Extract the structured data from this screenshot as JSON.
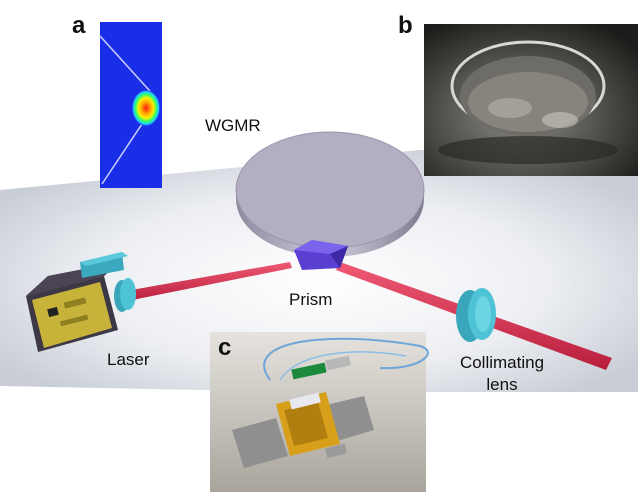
{
  "panels": {
    "a": "a",
    "b": "b",
    "c": "c"
  },
  "labels": {
    "wgmr": "WGMR",
    "prism": "Prism",
    "laser": "Laser",
    "collimating_line1": "Collimating",
    "collimating_line2": "lens"
  },
  "colors": {
    "beam": "#d8284a",
    "lens": "#4fc3d6",
    "resonator": "#b4aec3",
    "prism": "#5a3fd0",
    "laser_chip": "#c7b23a",
    "mode_field_bg": "#1a2ee8"
  }
}
